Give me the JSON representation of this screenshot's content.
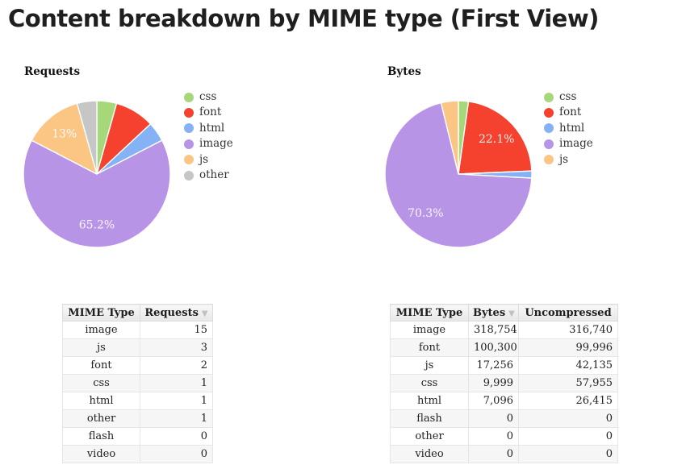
{
  "page": {
    "title": "Content breakdown by MIME type (First View)"
  },
  "colors": {
    "css": "#A6D87A",
    "font": "#F4422E",
    "html": "#85B1F5",
    "image": "#B794E6",
    "js": "#FBC584",
    "other": "#C6C6C6",
    "slice_stroke": "#FFFFFF",
    "pie_label_text": "#FFFFFF"
  },
  "chart_data": [
    {
      "type": "pie",
      "title": "Requests",
      "categories": [
        "css",
        "font",
        "html",
        "image",
        "js",
        "other"
      ],
      "values": [
        1,
        2,
        1,
        15,
        3,
        1
      ],
      "slice_labels": [
        "",
        "",
        "",
        "65.2%",
        "13%",
        ""
      ],
      "colors": [
        "#A6D87A",
        "#F4422E",
        "#85B1F5",
        "#B794E6",
        "#FBC584",
        "#C6C6C6"
      ],
      "legend_position": "right",
      "start_angle_deg": 0,
      "direction": "clockwise"
    },
    {
      "type": "pie",
      "title": "Bytes",
      "categories": [
        "css",
        "font",
        "html",
        "image",
        "js"
      ],
      "values": [
        9999,
        100300,
        7096,
        318754,
        17256
      ],
      "slice_labels": [
        "",
        "22.1%",
        "",
        "70.3%",
        ""
      ],
      "colors": [
        "#A6D87A",
        "#F4422E",
        "#85B1F5",
        "#B794E6",
        "#FBC584"
      ],
      "legend_position": "right",
      "start_angle_deg": 0,
      "direction": "clockwise"
    }
  ],
  "tables": [
    {
      "name": "requests-table",
      "columns": [
        "MIME Type",
        "Requests"
      ],
      "sort_col_index": 1,
      "sort_indicator": "▼",
      "rows": [
        [
          "image",
          "15"
        ],
        [
          "js",
          "3"
        ],
        [
          "font",
          "2"
        ],
        [
          "css",
          "1"
        ],
        [
          "html",
          "1"
        ],
        [
          "other",
          "1"
        ],
        [
          "flash",
          "0"
        ],
        [
          "video",
          "0"
        ]
      ]
    },
    {
      "name": "bytes-table",
      "columns": [
        "MIME Type",
        "Bytes",
        "Uncompressed"
      ],
      "sort_col_index": 1,
      "sort_indicator": "▼",
      "rows": [
        [
          "image",
          "318,754",
          "316,740"
        ],
        [
          "font",
          "100,300",
          "99,996"
        ],
        [
          "js",
          "17,256",
          "42,135"
        ],
        [
          "css",
          "9,999",
          "57,955"
        ],
        [
          "html",
          "7,096",
          "26,415"
        ],
        [
          "flash",
          "0",
          "0"
        ],
        [
          "other",
          "0",
          "0"
        ],
        [
          "video",
          "0",
          "0"
        ]
      ]
    }
  ]
}
